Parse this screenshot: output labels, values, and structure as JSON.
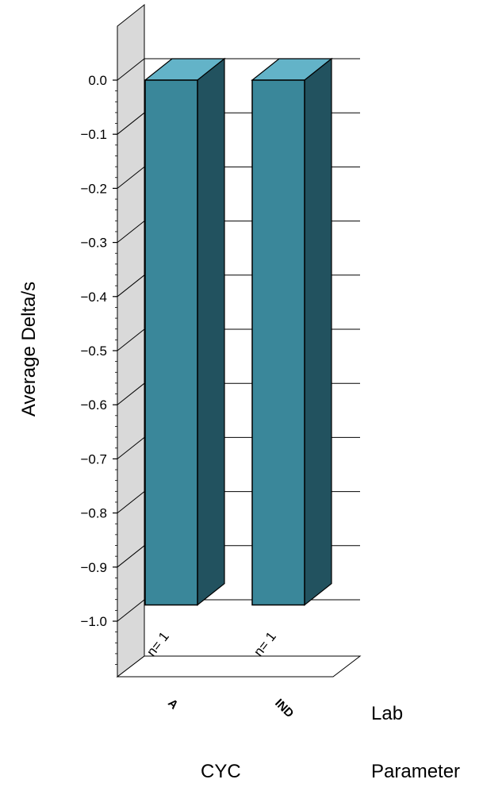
{
  "chart_data": {
    "type": "bar",
    "ylabel": "Average Delta/s",
    "ylim": [
      -1.1,
      0.0
    ],
    "yticks": [
      0.0,
      -0.1,
      -0.2,
      -0.3,
      -0.4,
      -0.5,
      -0.6,
      -0.7,
      -0.8,
      -0.9,
      -1.0
    ],
    "ytick_labels": [
      "0.0",
      "−0.1",
      "−0.2",
      "−0.3",
      "−0.4",
      "−0.5",
      "−0.6",
      "−0.7",
      "−0.8",
      "−0.9",
      "−1.0"
    ],
    "categories": [
      "A",
      "IND"
    ],
    "values": [
      -0.97,
      -0.97
    ],
    "n_labels": [
      "n= 1",
      "n= 1"
    ],
    "group_label": "CYC",
    "dimension_labels": {
      "lab": "Lab",
      "parameter": "Parameter"
    },
    "grid": true,
    "three_d": true,
    "colors": {
      "bar_front": "#3a879a",
      "bar_side": "#22525f",
      "bar_top": "#63b3c8",
      "wall": "#d9d9d9"
    }
  }
}
